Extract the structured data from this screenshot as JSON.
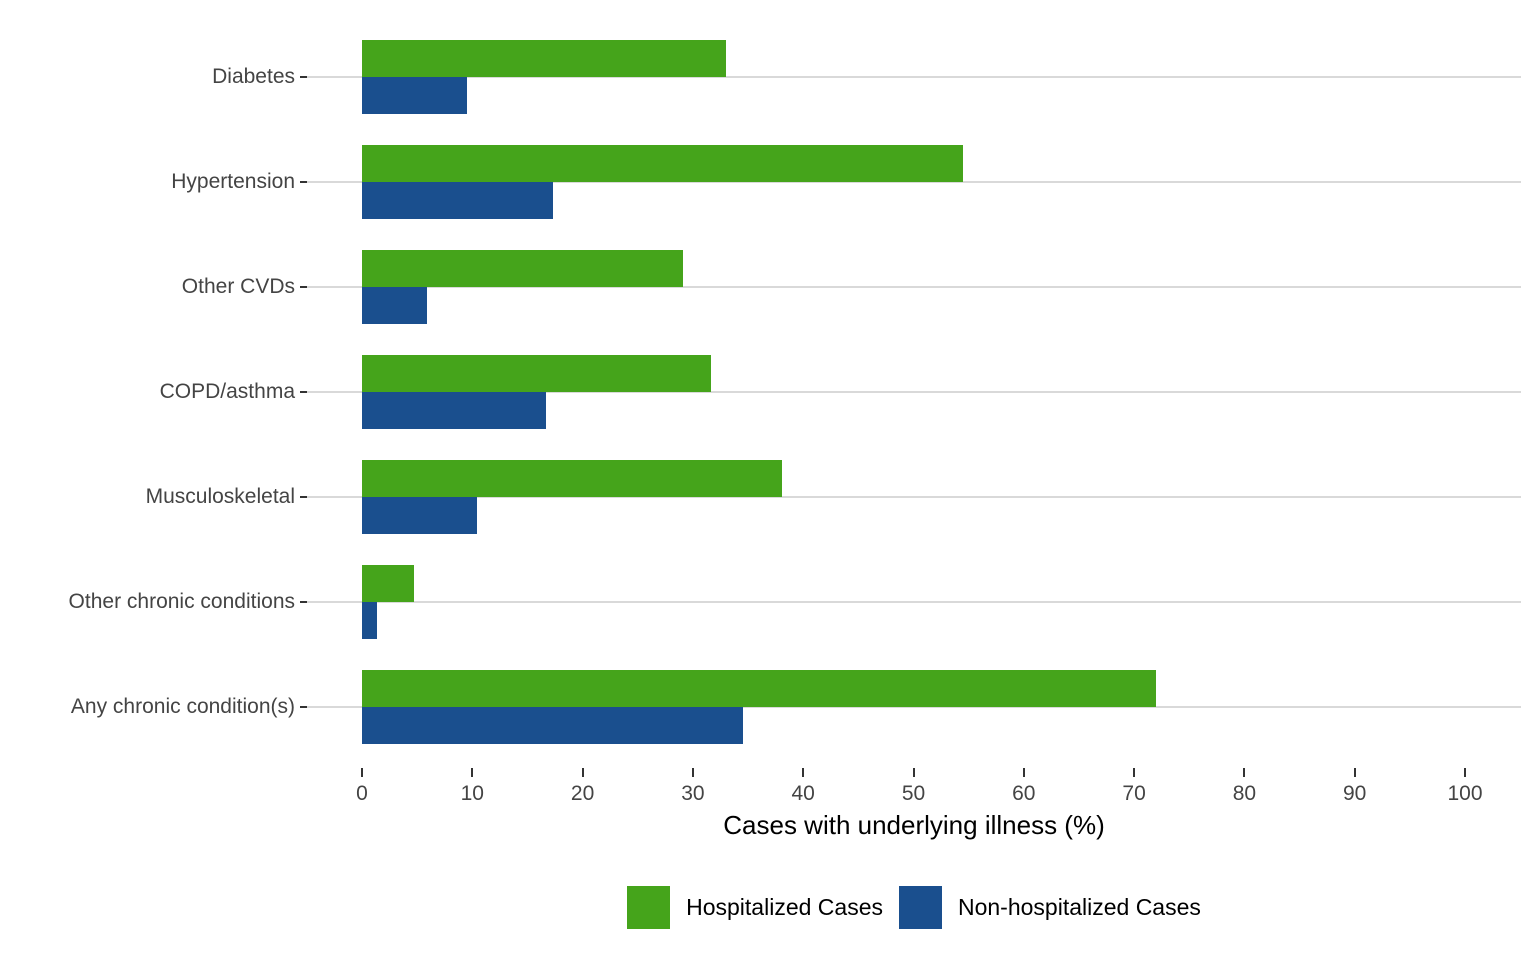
{
  "chart_data": {
    "type": "bar",
    "orientation": "horizontal",
    "title": "",
    "xlabel": "Cases with underlying illness (%)",
    "ylabel": "",
    "xlim": [
      0,
      100
    ],
    "xticks": [
      0,
      10,
      20,
      30,
      40,
      50,
      60,
      70,
      80,
      90,
      100
    ],
    "grid": "horizontal category lines only",
    "legend_position": "bottom-center",
    "categories": [
      "Diabetes",
      "Hypertension",
      "Other CVDs",
      "COPD/asthma",
      "Musculoskeletal",
      "Other chronic conditions",
      "Any chronic condition(s)"
    ],
    "series": [
      {
        "name": "Hospitalized Cases",
        "color": "#45a41b",
        "values": [
          33.0,
          54.5,
          29.1,
          31.6,
          38.1,
          4.7,
          72.0
        ]
      },
      {
        "name": "Non-hospitalized Cases",
        "color": "#1a4f8e",
        "values": [
          9.5,
          17.3,
          5.9,
          16.7,
          10.4,
          1.4,
          34.5
        ]
      }
    ]
  },
  "colors": {
    "hospitalized": "#45a41b",
    "non_hospitalized": "#1a4f8e",
    "gridline": "#d9d9d9",
    "axis_text": "#444444",
    "tick_mark": "#333333",
    "axis_title_text": "#000000",
    "background": "#ffffff"
  }
}
